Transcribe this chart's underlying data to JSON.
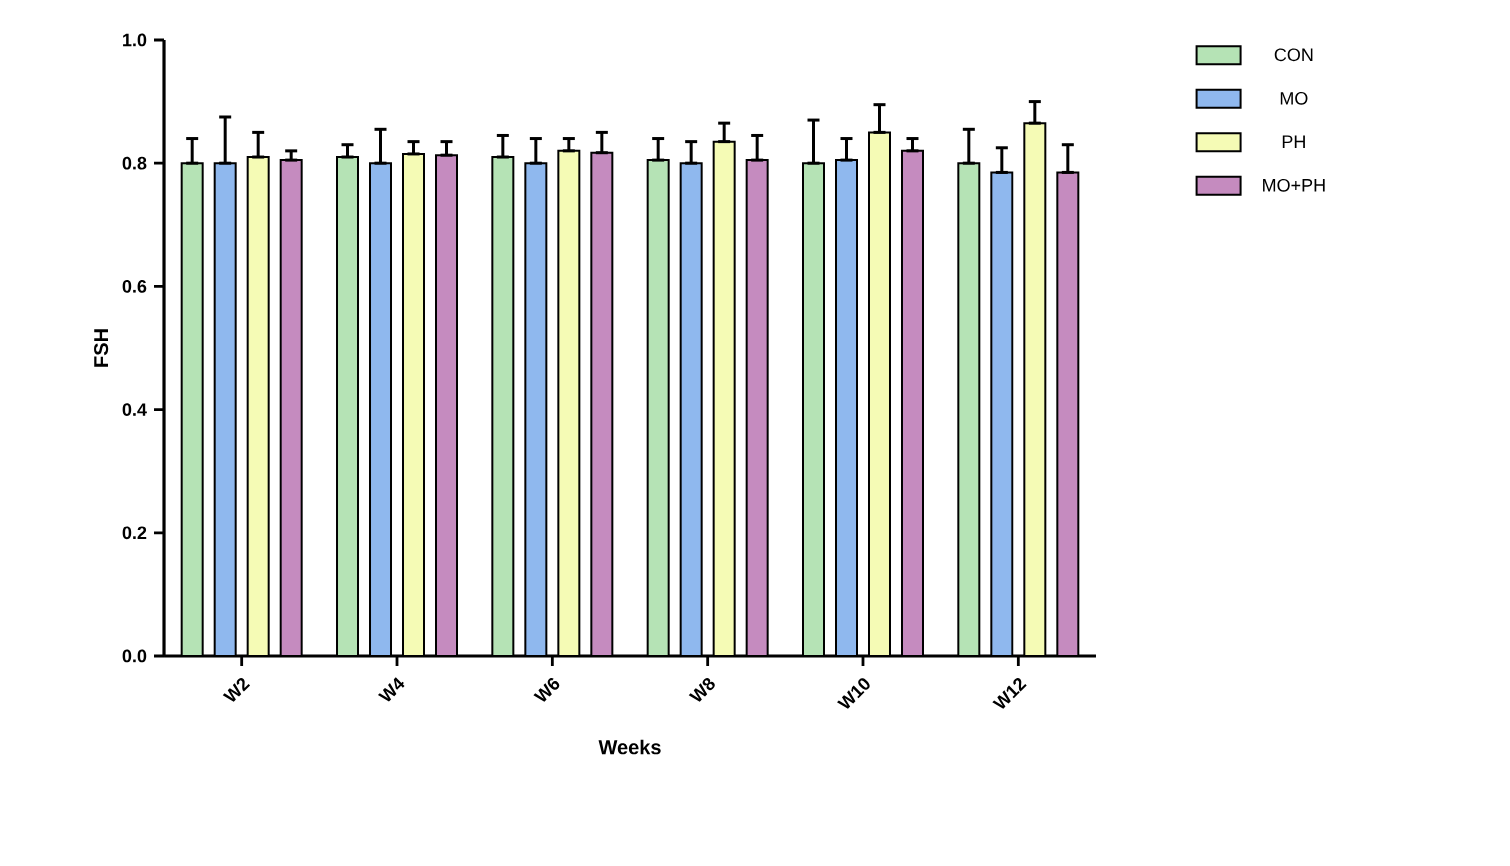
{
  "chart_data": {
    "type": "bar",
    "xlabel": "Weeks",
    "ylabel": "FSH",
    "categories": [
      "W2",
      "W4",
      "W6",
      "W8",
      "W10",
      "W12"
    ],
    "series": [
      {
        "name": "CON",
        "color": "#b5e3b5",
        "values": [
          0.8,
          0.81,
          0.81,
          0.805,
          0.8,
          0.8
        ],
        "errors": [
          [
            0.8,
            0.84
          ],
          [
            0.81,
            0.83
          ],
          [
            0.81,
            0.845
          ],
          [
            0.805,
            0.84
          ],
          [
            0.8,
            0.87
          ],
          [
            0.8,
            0.855
          ]
        ]
      },
      {
        "name": "MO",
        "color": "#8fb8ee",
        "values": [
          0.8,
          0.8,
          0.8,
          0.8,
          0.805,
          0.785
        ],
        "errors": [
          [
            0.8,
            0.875
          ],
          [
            0.8,
            0.855
          ],
          [
            0.8,
            0.84
          ],
          [
            0.8,
            0.835
          ],
          [
            0.805,
            0.84
          ],
          [
            0.785,
            0.825
          ]
        ]
      },
      {
        "name": "PH",
        "color": "#f5fbb5",
        "values": [
          0.81,
          0.815,
          0.82,
          0.835,
          0.85,
          0.865
        ],
        "errors": [
          [
            0.81,
            0.85
          ],
          [
            0.815,
            0.835
          ],
          [
            0.82,
            0.84
          ],
          [
            0.835,
            0.865
          ],
          [
            0.85,
            0.895
          ],
          [
            0.865,
            0.9
          ]
        ]
      },
      {
        "name": "MO+PH",
        "color": "#c58bbf",
        "values": [
          0.805,
          0.813,
          0.817,
          0.805,
          0.82,
          0.785
        ],
        "errors": [
          [
            0.805,
            0.82
          ],
          [
            0.813,
            0.835
          ],
          [
            0.817,
            0.85
          ],
          [
            0.805,
            0.845
          ],
          [
            0.82,
            0.84
          ],
          [
            0.785,
            0.83
          ]
        ]
      }
    ],
    "ylim": [
      0,
      1.0
    ],
    "yticks": [
      {
        "value": 0,
        "label": "0.0"
      },
      {
        "value": 0.2,
        "label": "0.2"
      },
      {
        "value": 0.4,
        "label": "0.4"
      },
      {
        "value": 0.6,
        "label": "0.6"
      },
      {
        "value": 0.8,
        "label": "0.8"
      },
      {
        "value": 1.0,
        "label": "1.0"
      }
    ],
    "legend": "right"
  }
}
